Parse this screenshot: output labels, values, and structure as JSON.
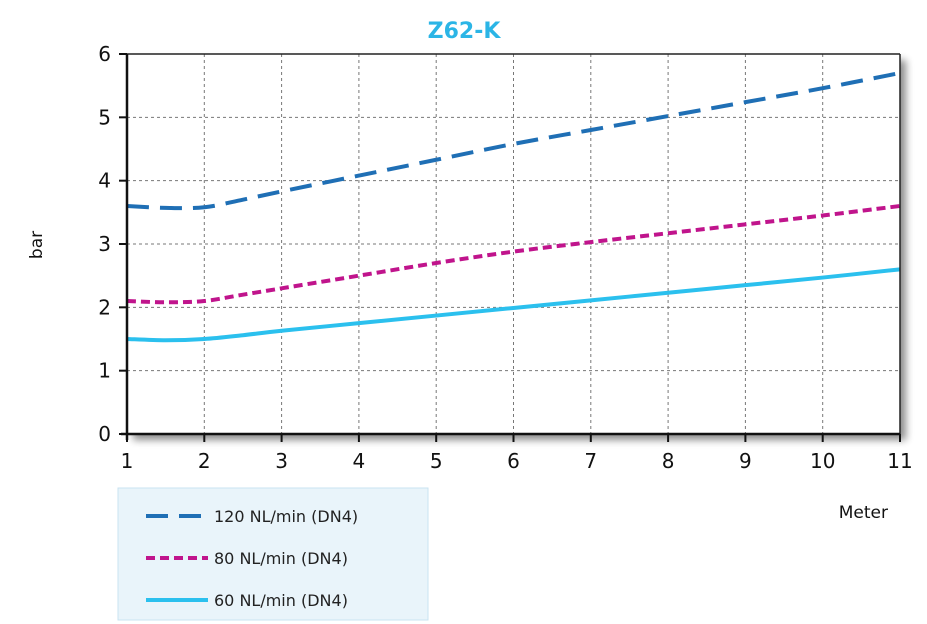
{
  "chart_data": {
    "type": "line",
    "title": "Z62-K",
    "title_color": "#2BB5E6",
    "xlabel": "Meter",
    "ylabel": "bar",
    "xlim": [
      1,
      11
    ],
    "ylim": [
      0,
      6
    ],
    "xticks": [
      1,
      2,
      3,
      4,
      5,
      6,
      7,
      8,
      9,
      10,
      11
    ],
    "yticks": [
      0,
      1,
      2,
      3,
      4,
      5,
      6
    ],
    "grid": true,
    "legend_position": "bottom-left",
    "series": [
      {
        "name": "120 NL/min (DN4)",
        "color": "#1F6FB5",
        "style": "long-dash",
        "x": [
          1,
          1.5,
          2,
          2.5,
          3,
          4,
          5,
          6,
          7,
          8,
          9,
          10,
          11
        ],
        "y": [
          3.6,
          3.57,
          3.58,
          3.7,
          3.83,
          4.08,
          4.33,
          4.58,
          4.8,
          5.02,
          5.24,
          5.46,
          5.7
        ]
      },
      {
        "name": "80 NL/min (DN4)",
        "color": "#C0148C",
        "style": "short-dash",
        "x": [
          1,
          1.5,
          2,
          2.5,
          3,
          4,
          5,
          6,
          7,
          8,
          9,
          10,
          11
        ],
        "y": [
          2.1,
          2.08,
          2.1,
          2.2,
          2.3,
          2.5,
          2.7,
          2.88,
          3.03,
          3.17,
          3.31,
          3.45,
          3.6
        ]
      },
      {
        "name": "60 NL/min (DN4)",
        "color": "#2BC0EE",
        "style": "solid",
        "x": [
          1,
          1.5,
          2,
          2.5,
          3,
          4,
          5,
          6,
          7,
          8,
          9,
          10,
          11
        ],
        "y": [
          1.5,
          1.48,
          1.5,
          1.56,
          1.63,
          1.75,
          1.87,
          1.99,
          2.11,
          2.23,
          2.35,
          2.47,
          2.6
        ]
      }
    ]
  }
}
